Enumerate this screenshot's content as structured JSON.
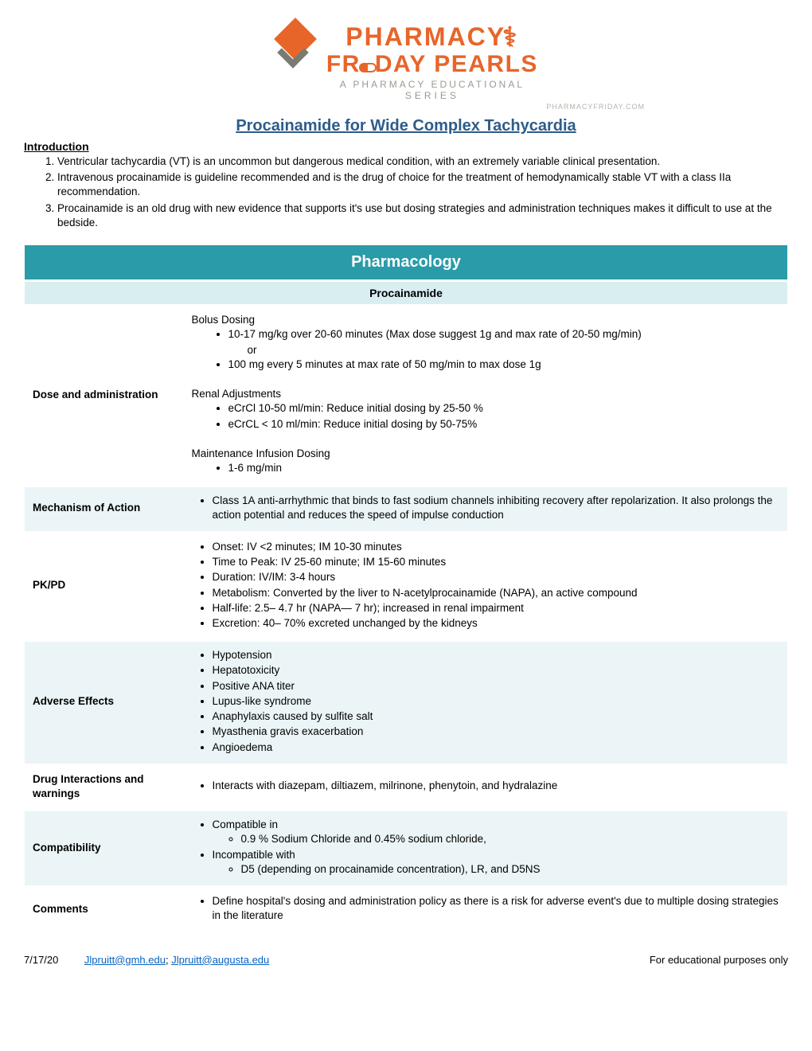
{
  "logo": {
    "line1": "PHARMACY",
    "line2_a": "FR",
    "line2_b": "DAY PEARLS",
    "sub1": "A PHARMACY EDUCATIONAL",
    "sub2": "SERIES",
    "url": "PHARMACYFRIDAY.COM"
  },
  "title": "Procainamide for Wide Complex Tachycardia",
  "intro_heading": "Introduction",
  "intro": [
    "Ventricular tachycardia (VT) is an uncommon but dangerous medical condition, with an extremely variable clinical presentation.",
    "Intravenous procainamide is guideline recommended and is the drug of choice for the treatment of hemodynamically stable VT with a class IIa recommendation.",
    "Procainamide is an old drug with new evidence that supports it's use but dosing strategies and administration techniques makes it difficult to use at the bedside."
  ],
  "table": {
    "header_main": "Pharmacology",
    "header_sub": "Procainamide",
    "rows": {
      "dose": {
        "label": "Dose and administration",
        "bolus_title": "Bolus Dosing",
        "bolus_1": "10-17 mg/kg over 20-60 minutes (Max dose suggest 1g and max rate of 20-50 mg/min)",
        "bolus_or": "or",
        "bolus_2": "100 mg every 5 minutes at max rate of 50 mg/min to max dose 1g",
        "renal_title": "Renal Adjustments",
        "renal_1": "eCrCl 10-50 ml/min: Reduce initial dosing by 25-50 %",
        "renal_2": "eCrCL < 10 ml/min: Reduce initial dosing by 50-75%",
        "maint_title": "Maintenance Infusion Dosing",
        "maint_1": "1-6 mg/min"
      },
      "moa": {
        "label": "Mechanism of Action",
        "item": "Class 1A anti-arrhythmic that binds to fast sodium channels inhibiting recovery after repolarization. It also prolongs the action potential and reduces the speed of impulse conduction"
      },
      "pkpd": {
        "label": "PK/PD",
        "items": [
          "Onset: IV <2 minutes; IM 10-30 minutes",
          "Time to Peak: IV 25-60 minute; IM 15-60 minutes",
          "Duration: IV/IM: 3-4 hours",
          "Metabolism: Converted by the liver to N-acetylprocainamide (NAPA), an active compound",
          "Half-life: 2.5– 4.7 hr (NAPA— 7 hr); increased in renal impairment",
          "Excretion: 40– 70% excreted unchanged by the kidneys"
        ]
      },
      "adverse": {
        "label": "Adverse Effects",
        "items": [
          "Hypotension",
          "Hepatotoxicity",
          "Positive ANA titer",
          "Lupus-like syndrome",
          "Anaphylaxis caused by sulfite salt",
          "Myasthenia gravis exacerbation",
          "Angioedema"
        ]
      },
      "interactions": {
        "label": "Drug Interactions and warnings",
        "item": "Interacts with diazepam, diltiazem, milrinone, phenytoin, and hydralazine"
      },
      "compat": {
        "label": "Compatibility",
        "compat_title": "Compatible in",
        "compat_item": "0.9 % Sodium Chloride and 0.45% sodium chloride,",
        "incompat_title": "Incompatible with",
        "incompat_item": "D5 (depending on procainamide concentration), LR, and D5NS"
      },
      "comments": {
        "label": "Comments",
        "item": "Define hospital's dosing and administration policy as there is a risk for adverse event's due to multiple dosing strategies in the literature"
      }
    }
  },
  "footer": {
    "date": "7/17/20",
    "email1": "Jlpruitt@gmh.edu",
    "email2": "Jlpruitt@augusta.edu",
    "right": "For educational purposes only"
  }
}
